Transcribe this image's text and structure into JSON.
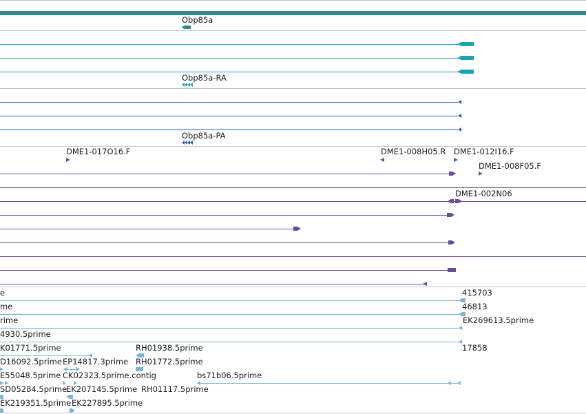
{
  "colors": {
    "gene": "#2f8b87",
    "mrna": "#1ba3b8",
    "cds": "#2a5cc0",
    "clone": "#6b4aa0",
    "est": "#7ab6d8",
    "separator": "#c4c4c4"
  },
  "tracks": {
    "gene": {
      "label": "Obp85a"
    },
    "mrna": {
      "label": "Obp85a-RA"
    },
    "protein": {
      "label": "Obp85a-PA"
    },
    "clones": {
      "labels": [
        "DME1-017O16.F",
        "DME1-008H05.R",
        "DME1-012I16.F",
        "DME1-008F05.F",
        "DME1-002N06"
      ]
    },
    "est": {
      "labels": [
        "e",
        "415703",
        "me",
        "46813",
        "rime",
        "EK269613.5prime",
        "4930.5prime",
        "K01771.5prime",
        "RH01938.5prime",
        "17858",
        "D16092.5prime",
        "EP14817.3prime",
        "RH01772.5prime",
        "E55048.5prime",
        "CK02323.5prime.contig",
        "bs71b06.5prime",
        "SD05284.5prime",
        "EK207145.5prime",
        "RH01117.5prime",
        "EK219351.5prime",
        "EK227895.5prime"
      ]
    }
  }
}
